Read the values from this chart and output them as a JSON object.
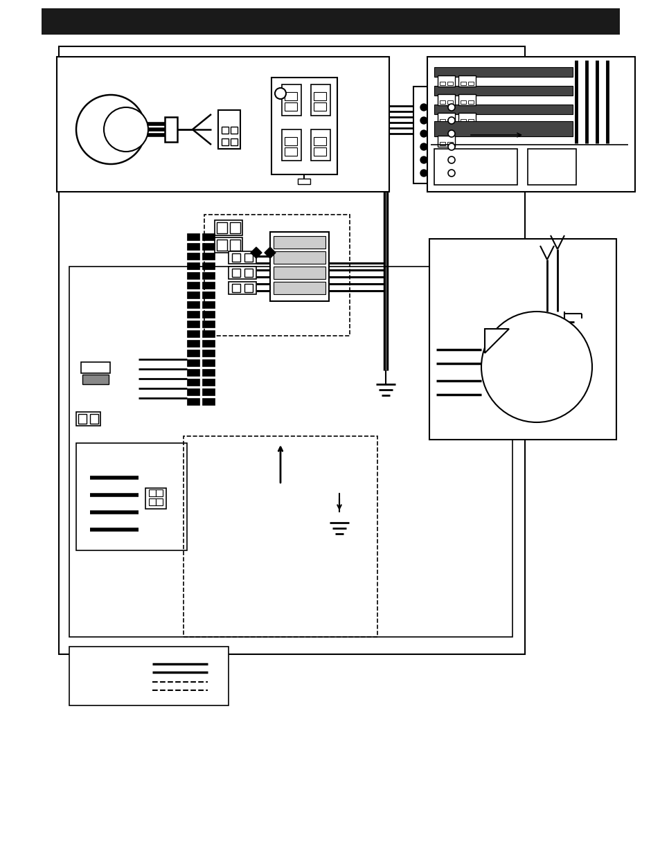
{
  "bg_color": "#ffffff",
  "title_bar_color": "#1a1a1a",
  "black": "#000000",
  "gray": "#888888",
  "lgray": "#cccccc"
}
